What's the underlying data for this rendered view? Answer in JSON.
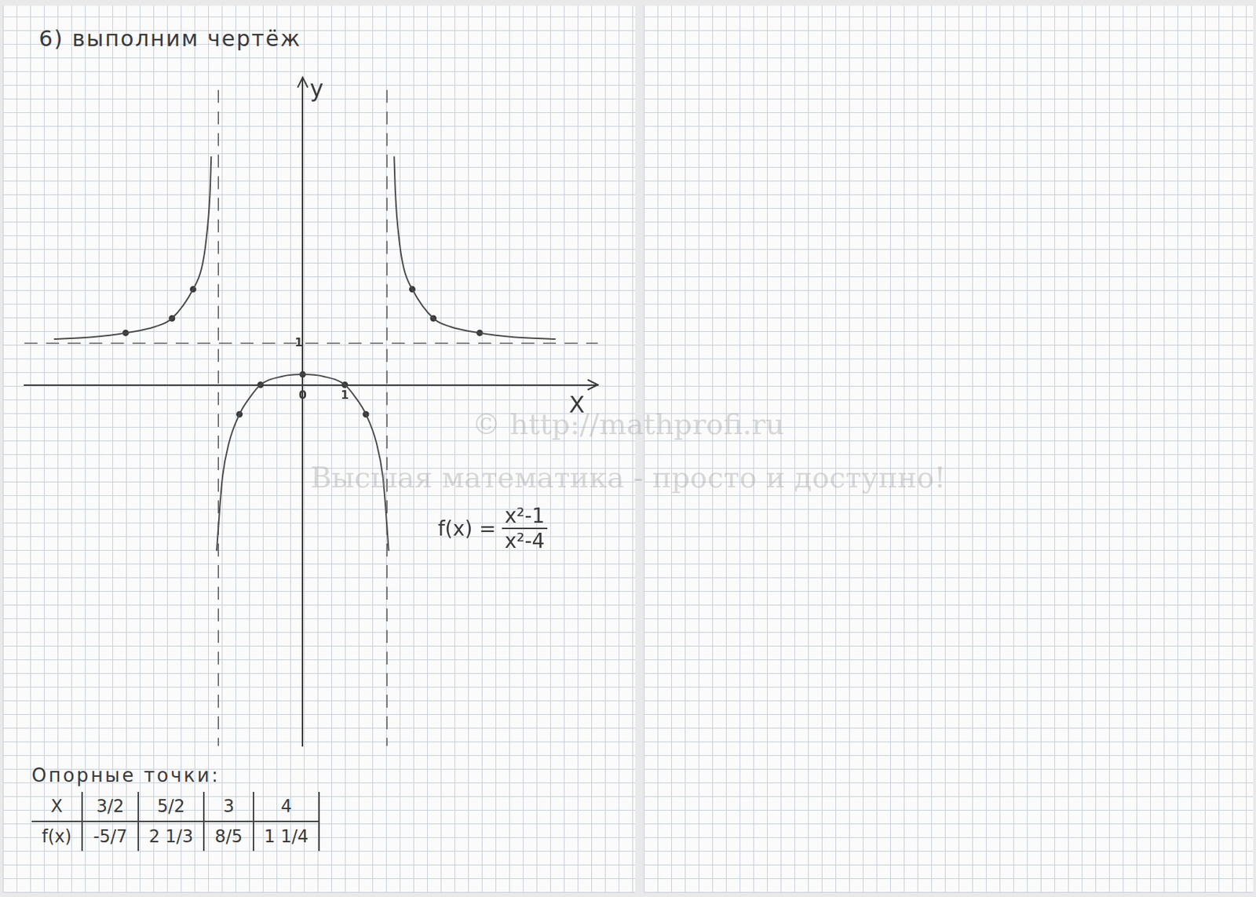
{
  "chart_data": {
    "type": "line",
    "title": "6) выполним чертёж",
    "x_label": "X",
    "y_label": "y",
    "xlim": [
      -6.6,
      7.0
    ],
    "ylim": [
      -8.7,
      7.4
    ],
    "xticks": [
      0,
      1
    ],
    "yticks": [
      1
    ],
    "grid": false,
    "annotation": {
      "prefix": "f(x) =",
      "numerator": "x²-1",
      "denominator": "x²-4"
    },
    "series": [
      {
        "color": "#4a4a4a",
        "line_style": "solid",
        "marker": "none",
        "x": [
          -5.9,
          -5,
          -4.2,
          -3.5,
          -3.1,
          -2.6,
          -2.4,
          -2.3,
          -2.2,
          -2.17
        ],
        "values": [
          1.1,
          1.15,
          1.25,
          1.4,
          1.6,
          2.3,
          2.8,
          3.4,
          4.6,
          5.5
        ]
      },
      {
        "color": "#4a4a4a",
        "line_style": "solid",
        "marker": "none",
        "x": [
          -2.04,
          -1.97,
          -1.9,
          -1.75,
          -1.5,
          -1.25,
          -1,
          -0.5,
          0,
          0.5,
          1,
          1.25,
          1.5,
          1.75,
          1.9,
          1.97,
          2.04
        ],
        "values": [
          -4.0,
          -3.0,
          -2.2,
          -1.4,
          -0.71,
          -0.3,
          0,
          0.2,
          0.25,
          0.2,
          0,
          -0.3,
          -0.71,
          -1.4,
          -2.2,
          -3.0,
          -4.0
        ]
      },
      {
        "color": "#4a4a4a",
        "line_style": "solid",
        "marker": "none",
        "x": [
          2.17,
          2.2,
          2.3,
          2.4,
          2.6,
          3.1,
          3.5,
          4.2,
          5,
          6.0
        ],
        "values": [
          5.5,
          4.6,
          3.4,
          2.8,
          2.3,
          1.6,
          1.4,
          1.25,
          1.15,
          1.1
        ]
      },
      {
        "color": "#3a3a3a",
        "line_style": "none",
        "marker": "circle",
        "x": [
          -4.2,
          -3.1,
          -2.6,
          -1.5,
          -1,
          0,
          1,
          1.5,
          2.6,
          3.1,
          4.2
        ],
        "values": [
          1.25,
          1.6,
          2.3,
          -0.71,
          0,
          0.25,
          0,
          -0.71,
          2.3,
          1.6,
          1.25
        ]
      },
      {
        "color": "#5a5a5a",
        "line_style": "dashed",
        "marker": "none",
        "x": [
          -2,
          -2
        ],
        "values": [
          7.1,
          -8.7
        ]
      },
      {
        "color": "#5a5a5a",
        "line_style": "dashed",
        "marker": "none",
        "x": [
          2,
          2
        ],
        "values": [
          7.1,
          -8.7
        ]
      },
      {
        "color": "#5a5a5a",
        "line_style": "dashed",
        "marker": "none",
        "x": [
          -6.6,
          7.0
        ],
        "values": [
          1,
          1
        ]
      }
    ]
  },
  "table": {
    "title": "Опорные точки:",
    "rows": [
      [
        "X",
        "3/2",
        "5/2",
        "3",
        "4"
      ],
      [
        "f(x)",
        "-5/7",
        "2 1/3",
        "8/5",
        "1 1/4"
      ]
    ]
  },
  "watermark": [
    "© http://mathprofi.ru",
    "Высшая математика - просто и доступно!"
  ]
}
